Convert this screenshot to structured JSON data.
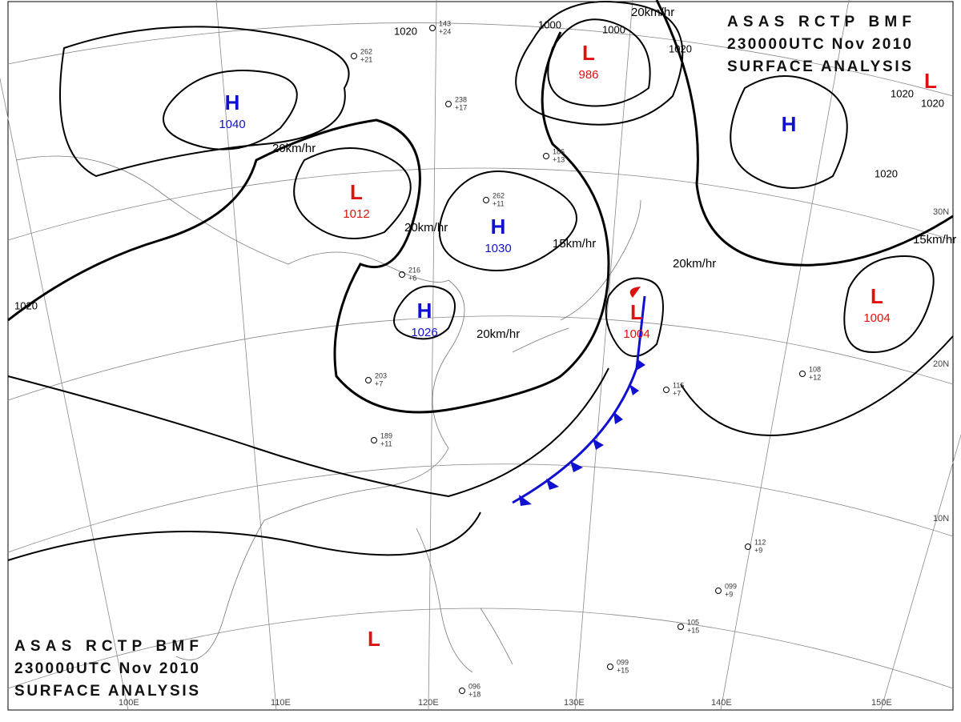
{
  "header": {
    "lines": [
      "ASAS RCTP BMF",
      "230000UTC Nov 2010",
      "SURFACE ANALYSIS"
    ]
  },
  "systems": [
    {
      "symbol": "H",
      "pressure": "1040",
      "color": "#1010d0"
    },
    {
      "symbol": "L",
      "pressure": "1012",
      "color": "#e01010"
    },
    {
      "symbol": "H",
      "pressure": "1030",
      "color": "#1010d0"
    },
    {
      "symbol": "H",
      "pressure": "1026",
      "color": "#1010d0"
    },
    {
      "symbol": "L",
      "pressure": "986",
      "color": "#e01010"
    },
    {
      "symbol": "L",
      "pressure": "1004",
      "color": "#e01010"
    },
    {
      "symbol": "L",
      "pressure": "1004",
      "color": "#e01010"
    },
    {
      "symbol": "H",
      "color": "#1010d0"
    },
    {
      "symbol": "L",
      "color": "#e01010"
    },
    {
      "symbol": "L",
      "color": "#e01010"
    }
  ],
  "movement_labels": [
    "20km/hr",
    "20km/hr",
    "15km/hr",
    "20km/hr",
    "20km/hr",
    "15km/hr",
    "20km/hr"
  ],
  "isobar_labels": [
    "1020",
    "1020",
    "1000",
    "1000",
    "1020",
    "1020",
    "1020",
    "1020"
  ],
  "latitude_labels": [
    "30N",
    "20N",
    "10N"
  ],
  "longitude_labels": [
    "100E",
    "110E",
    "120E",
    "130E",
    "140E",
    "150E"
  ],
  "stations": [
    {
      "pressure": "143",
      "tendency": "+24"
    },
    {
      "pressure": "262",
      "tendency": "+21"
    },
    {
      "pressure": "238",
      "tendency": "+17"
    },
    {
      "pressure": "186",
      "tendency": "+13"
    },
    {
      "pressure": "262",
      "tendency": "+11"
    },
    {
      "pressure": "216",
      "tendency": "+6"
    },
    {
      "pressure": "203",
      "tendency": "+7"
    },
    {
      "pressure": "189",
      "tendency": "+11"
    },
    {
      "pressure": "115",
      "tendency": "+7"
    },
    {
      "pressure": "108",
      "tendency": "+12"
    },
    {
      "pressure": "112",
      "tendency": "+9"
    },
    {
      "pressure": "099",
      "tendency": "+9"
    },
    {
      "pressure": "105",
      "tendency": "+15"
    },
    {
      "pressure": "099",
      "tendency": "+15"
    },
    {
      "pressure": "096",
      "tendency": "+18"
    }
  ]
}
